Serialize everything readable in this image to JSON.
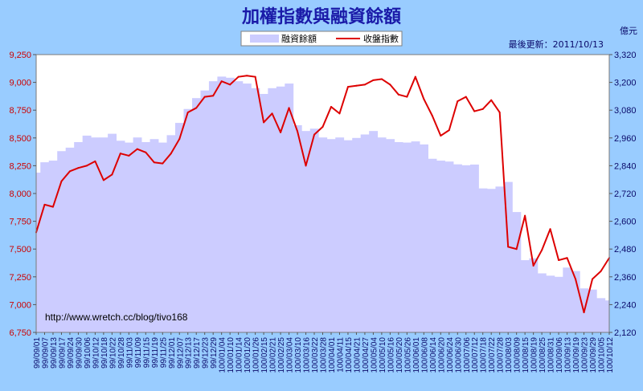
{
  "title": "加權指數與融資餘額",
  "update_text": "最後更新：2011/10/13",
  "right_unit": "億元",
  "watermark": "http://www.wretch.cc/blog/tivo168",
  "colors": {
    "background": "#99ccff",
    "plot": "#ffffff",
    "area": "#ccccff",
    "line": "#dd0000",
    "title": "#1a1aa8"
  },
  "chart_data": {
    "type": "area",
    "title": "加權指數與融資餘額",
    "grid": false,
    "legend_position": "top-center",
    "categories": [
      "99/09/01",
      "99/09/07",
      "99/09/13",
      "99/09/17",
      "99/09/24",
      "99/09/30",
      "99/10/06",
      "99/10/12",
      "99/10/18",
      "99/10/22",
      "99/10/28",
      "99/11/03",
      "99/11/09",
      "99/11/15",
      "99/11/19",
      "99/11/25",
      "99/12/01",
      "99/12/07",
      "99/12/13",
      "99/12/17",
      "99/12/23",
      "99/12/29",
      "100/01/04",
      "100/01/10",
      "100/01/14",
      "100/01/20",
      "100/01/26",
      "100/02/15",
      "100/02/21",
      "100/02/25",
      "100/03/04",
      "100/03/10",
      "100/03/16",
      "100/03/22",
      "100/03/28",
      "100/04/01",
      "100/04/11",
      "100/04/15",
      "100/04/21",
      "100/04/27",
      "100/05/04",
      "100/05/10",
      "100/05/16",
      "100/05/20",
      "100/05/26",
      "100/06/01",
      "100/06/08",
      "100/06/14",
      "100/06/20",
      "100/06/24",
      "100/06/30",
      "100/07/06",
      "100/07/12",
      "100/07/18",
      "100/07/22",
      "100/07/28",
      "100/08/03",
      "100/08/09",
      "100/08/15",
      "100/08/19",
      "100/08/25",
      "100/08/31",
      "100/09/06",
      "100/09/13",
      "100/09/19",
      "100/09/23",
      "100/09/29",
      "100/10/05",
      "100/10/12"
    ],
    "series": [
      {
        "name": "融資餘額",
        "type": "area",
        "axis": "right",
        "values": [
          2810,
          2855,
          2862,
          2903,
          2918,
          2942,
          2970,
          2962,
          2962,
          2978,
          2948,
          2940,
          2962,
          2942,
          2955,
          2940,
          2972,
          3025,
          3085,
          3132,
          3165,
          3205,
          3225,
          3220,
          3205,
          3195,
          3175,
          3150,
          3175,
          3182,
          3195,
          3015,
          2990,
          3000,
          2962,
          2955,
          2962,
          2950,
          2960,
          2975,
          2990,
          2962,
          2955,
          2942,
          2940,
          2945,
          2932,
          2870,
          2862,
          2858,
          2846,
          2842,
          2845,
          2742,
          2740,
          2750,
          2770,
          2640,
          2432,
          2440,
          2375,
          2365,
          2360,
          2400,
          2385,
          2310,
          2305,
          2268,
          2258
        ]
      },
      {
        "name": "收盤指數",
        "type": "line",
        "axis": "left",
        "values": [
          7650,
          7900,
          7880,
          8110,
          8200,
          8230,
          8250,
          8290,
          8120,
          8170,
          8360,
          8340,
          8400,
          8370,
          8280,
          8270,
          8360,
          8490,
          8730,
          8770,
          8870,
          8880,
          9010,
          8980,
          9050,
          9060,
          9050,
          8640,
          8720,
          8550,
          8770,
          8560,
          8250,
          8530,
          8600,
          8780,
          8720,
          8960,
          8970,
          8980,
          9020,
          9030,
          8980,
          8890,
          8870,
          9050,
          8850,
          8700,
          8520,
          8570,
          8830,
          8870,
          8740,
          8760,
          8840,
          8730,
          7520,
          7500,
          7800,
          7350,
          7490,
          7680,
          7400,
          7420,
          7230,
          6930,
          7230,
          7300,
          7420
        ]
      }
    ],
    "y_left": {
      "min": 6750,
      "max": 9250,
      "step": 250
    },
    "y_right": {
      "min": 2120,
      "max": 3320,
      "step": 120,
      "label": "億元"
    }
  }
}
